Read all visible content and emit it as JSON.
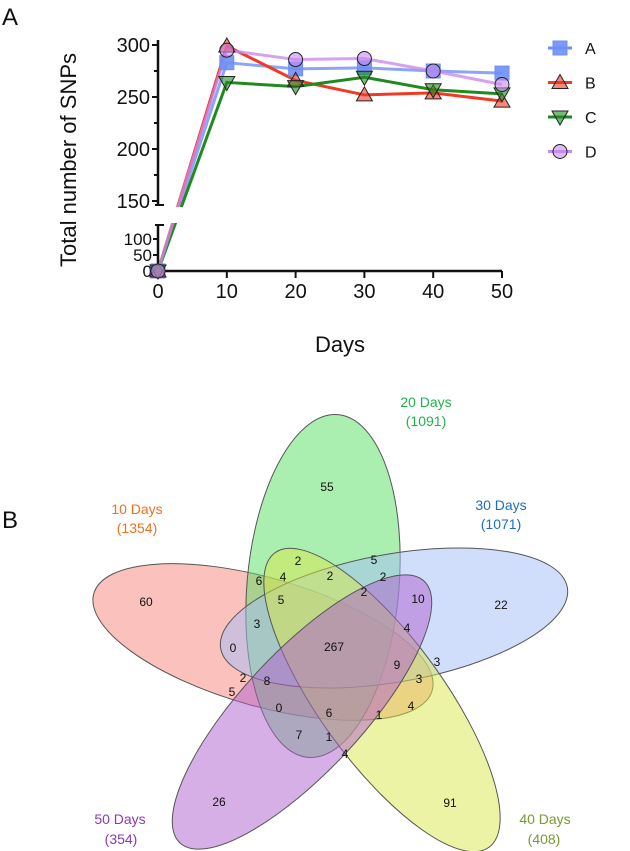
{
  "panel_a_label": "A",
  "panel_b_label": "B",
  "chart_data": [
    {
      "type": "line",
      "title": "",
      "xlabel": "Days",
      "ylabel": "Total number of SNPs",
      "x": [
        0,
        10,
        20,
        30,
        40,
        50
      ],
      "x_ticks": [
        "0",
        "10",
        "20",
        "30",
        "40",
        "50"
      ],
      "y_axis_break": true,
      "ylim_lower": [
        0,
        140
      ],
      "ylim_upper": [
        145,
        305
      ],
      "y_ticks_lower": [
        "0",
        "50",
        "100"
      ],
      "y_ticks_upper": [
        "150",
        "200",
        "250",
        "300"
      ],
      "legend_position": "right",
      "series": [
        {
          "name": "A",
          "marker": "square",
          "color": "#6f8ff5",
          "values": [
            0,
            283,
            277,
            278,
            275,
            273
          ]
        },
        {
          "name": "B",
          "marker": "triangle-up",
          "color": "#f03a23",
          "values": [
            0,
            299,
            266,
            252,
            254,
            246
          ]
        },
        {
          "name": "C",
          "marker": "triangle-down",
          "color": "#1f8a1f",
          "values": [
            0,
            264,
            260,
            269,
            257,
            253
          ]
        },
        {
          "name": "D",
          "marker": "circle",
          "color": "#c98af0",
          "values": [
            0,
            295,
            286,
            287,
            275,
            262
          ]
        }
      ]
    },
    {
      "type": "venn",
      "sets": [
        {
          "name": "10 Days",
          "count": "(1354)",
          "color": "#f07020"
        },
        {
          "name": "20 Days",
          "count": "(1091)",
          "color": "#22b24c"
        },
        {
          "name": "30 Days",
          "count": "(1071)",
          "color": "#1a6fc4"
        },
        {
          "name": "40 Days",
          "count": "(408)",
          "color": "#7a9a30"
        },
        {
          "name": "50 Days",
          "count": "(354)",
          "color": "#8a3ab0"
        }
      ],
      "regions": [
        "55",
        "60",
        "22",
        "267",
        "26",
        "91",
        "2",
        "5",
        "6",
        "4",
        "2",
        "2",
        "10",
        "5",
        "2",
        "3",
        "4",
        "0",
        "9",
        "3",
        "2",
        "8",
        "3",
        "5",
        "0",
        "6",
        "1",
        "4",
        "7",
        "1",
        "4"
      ]
    }
  ]
}
